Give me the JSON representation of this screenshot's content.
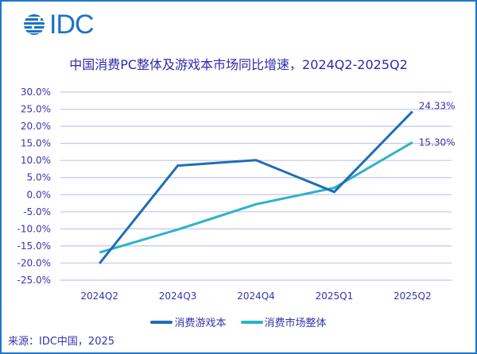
{
  "logo": {
    "text": "IDC",
    "icon": "globe-icon"
  },
  "title": "中国消费PC整体及游戏本市场同比增速，2024Q2-2025Q2",
  "source": "来源：IDC中国，2025",
  "colors": {
    "gaming": "#1f6db5",
    "overall": "#2cb3c9",
    "grid": "#c4c4f4",
    "text": "#3535b0",
    "border": "#1f78c8"
  },
  "chart_data": {
    "type": "line",
    "title": "中国消费PC整体及游戏本市场同比增速，2024Q2-2025Q2",
    "categories": [
      "2024Q2",
      "2024Q3",
      "2024Q4",
      "2025Q1",
      "2025Q2"
    ],
    "series": [
      {
        "name": "消费游戏本",
        "values": [
          -20.1,
          8.5,
          10.1,
          0.8,
          24.33
        ],
        "color": "#1f6db5"
      },
      {
        "name": "消费市场整体",
        "values": [
          -16.9,
          -10.2,
          -2.8,
          2.0,
          15.3
        ],
        "color": "#2cb3c9"
      }
    ],
    "annotations": [
      {
        "series": "消费游戏本",
        "category": "2025Q2",
        "text": "24.33%"
      },
      {
        "series": "消费市场整体",
        "category": "2025Q2",
        "text": "15.30%"
      }
    ],
    "ylim": [
      -25,
      30
    ],
    "yticks": [
      "30.0%",
      "25.0%",
      "20.0%",
      "15.0%",
      "10.0%",
      "5.0%",
      "0.0%",
      "-5.0%",
      "-10.0%",
      "-15.0%",
      "-20.0%",
      "-25.0%"
    ],
    "ytick_values": [
      30,
      25,
      20,
      15,
      10,
      5,
      0,
      -5,
      -10,
      -15,
      -20,
      -25
    ],
    "xlabel": "",
    "ylabel": "",
    "grid": true,
    "legend_position": "bottom"
  }
}
